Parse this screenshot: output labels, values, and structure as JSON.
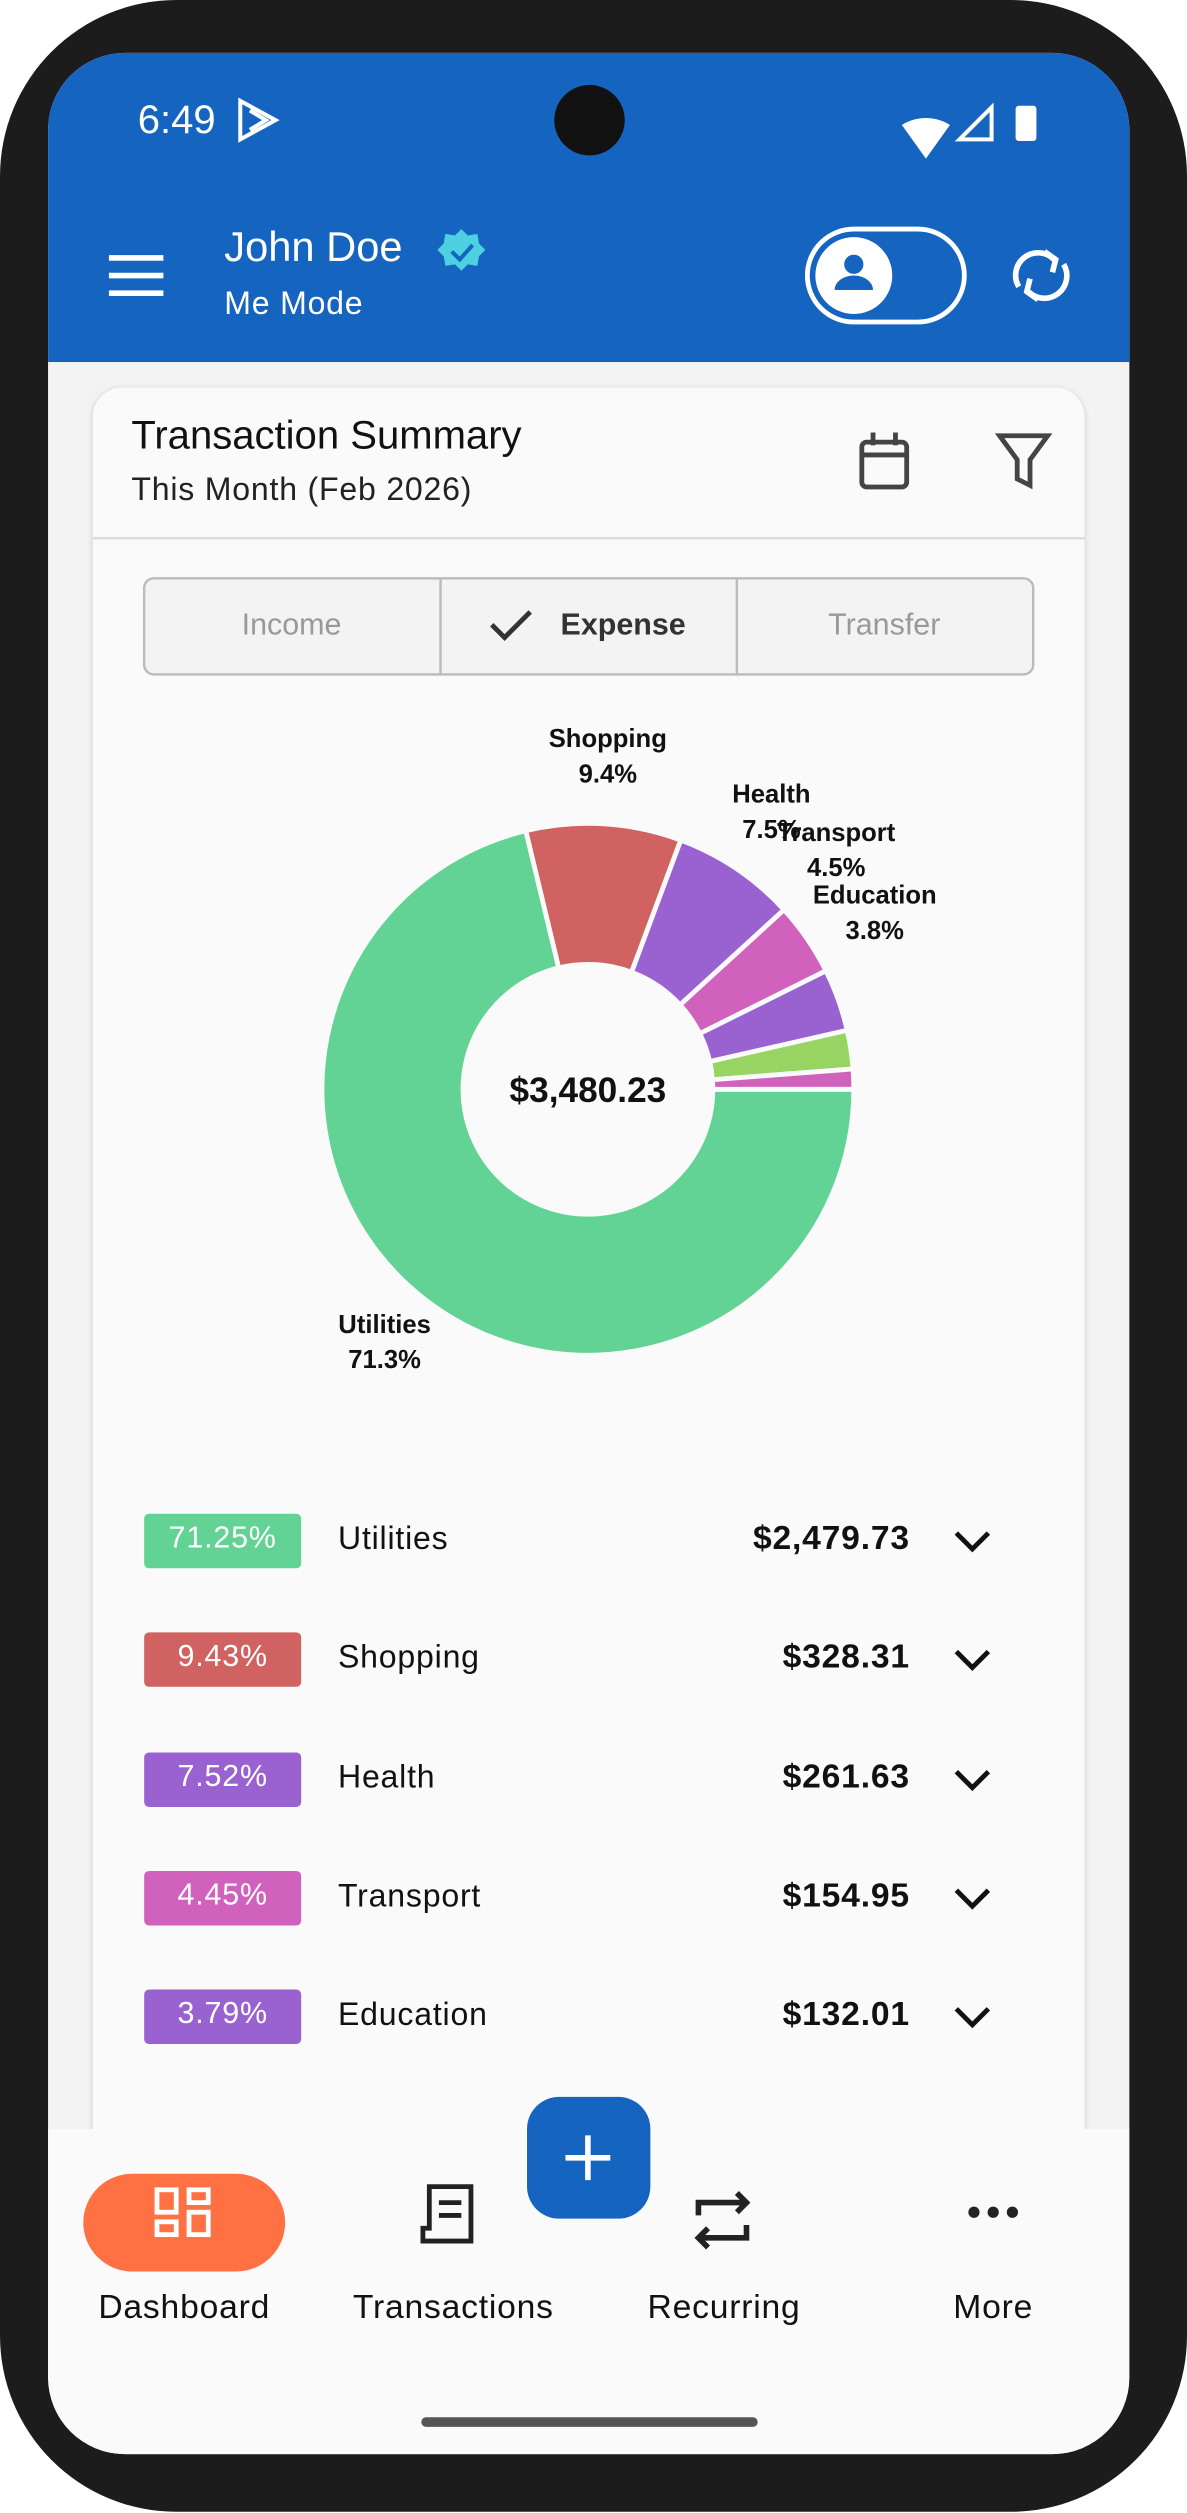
{
  "status_bar": {
    "time": "6:49"
  },
  "header": {
    "name": "John Doe",
    "mode": "Me Mode"
  },
  "card": {
    "title": "Transaction Summary",
    "subtitle": "This Month (Feb 2026)"
  },
  "tabs": [
    "Income",
    "Expense",
    "Transfer"
  ],
  "chart_data": {
    "type": "pie",
    "center_label": "$3,480.23",
    "categories": [
      "Utilities",
      "Shopping",
      "Health",
      "Transport",
      "Education",
      null,
      null
    ],
    "values": [
      71.25,
      9.43,
      7.52,
      4.45,
      3.79,
      2.34,
      1.22
    ],
    "value_labels": [
      "71.3%",
      "9.4%",
      "7.5%",
      "4.5%",
      "3.8%",
      null,
      null
    ],
    "colors": [
      "#62d394",
      "#d06262",
      "#9a62d0",
      "#d062be",
      "#9a62d0",
      "#97d462",
      "#d062be"
    ]
  },
  "breakdown": {
    "rows": [
      {
        "percent": "71.25%",
        "category": "Utilities",
        "amount": "$2,479.73"
      },
      {
        "percent": "9.43%",
        "category": "Shopping",
        "amount": "$328.31"
      },
      {
        "percent": "7.52%",
        "category": "Health",
        "amount": "$261.63"
      },
      {
        "percent": "4.45%",
        "category": "Transport",
        "amount": "$154.95"
      },
      {
        "percent": "3.79%",
        "category": "Education",
        "amount": "$132.01"
      }
    ]
  },
  "nav": [
    "Dashboard",
    "Transactions",
    "Recurring",
    "More"
  ]
}
